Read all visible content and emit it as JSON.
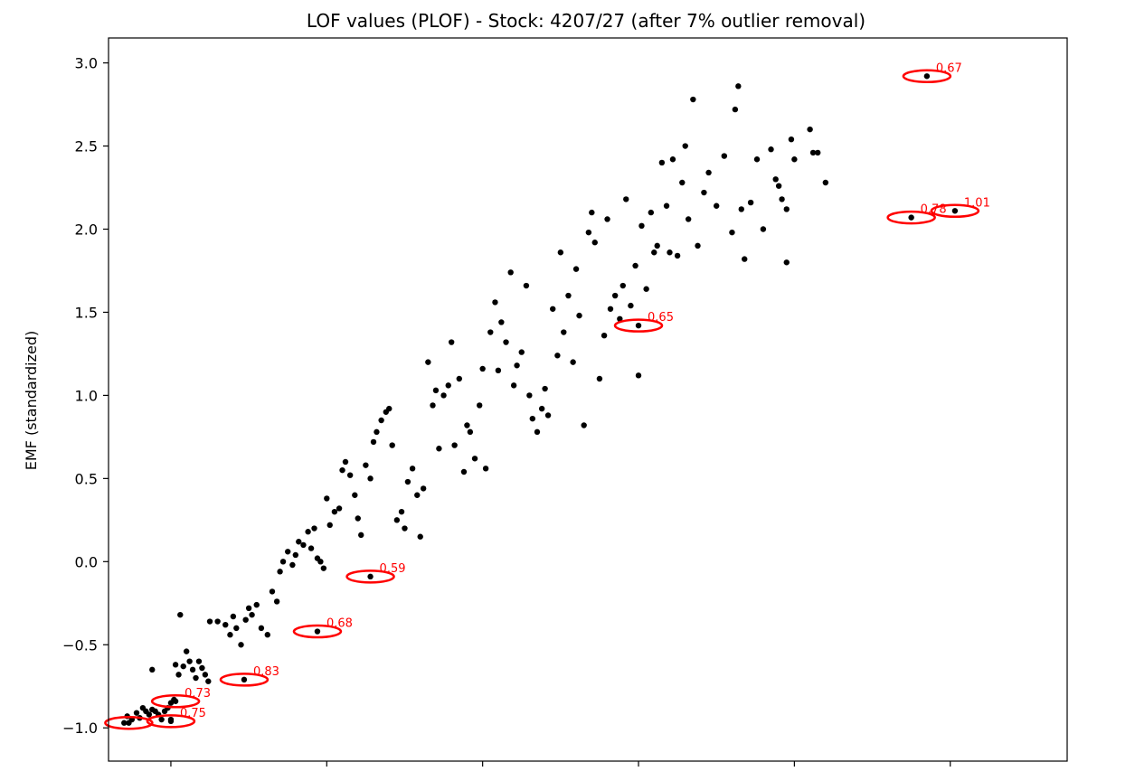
{
  "chart_data": {
    "type": "scatter",
    "title": "LOF values (PLOF) - Stock: 4207/27 (after 7% outlier removal)",
    "xlabel": "",
    "ylabel": "EMF (standardized)",
    "xlim": [
      -1.4,
      4.75
    ],
    "ylim": [
      -1.2,
      3.15
    ],
    "yticks": [
      "3.0",
      "2.5",
      "2.0",
      "1.5",
      "1.0",
      "0.5",
      "0.0",
      "−0.5",
      "−1.0"
    ],
    "ytick_values": [
      3.0,
      2.5,
      2.0,
      1.5,
      1.0,
      0.5,
      0.0,
      -0.5,
      -1.0
    ],
    "xticks_values": [
      -1.0,
      0.0,
      1.0,
      2.0,
      3.0,
      4.0
    ],
    "xtick_labels_visible": false,
    "grid": false,
    "point_color": "#000000",
    "highlight_color": "#ff0000",
    "points": [
      [
        -1.3,
        -0.97
      ],
      [
        -1.28,
        -0.93
      ],
      [
        -1.25,
        -0.95
      ],
      [
        -1.22,
        -0.91
      ],
      [
        -1.2,
        -0.94
      ],
      [
        -1.18,
        -0.88
      ],
      [
        -1.16,
        -0.9
      ],
      [
        -1.14,
        -0.92
      ],
      [
        -1.12,
        -0.89
      ],
      [
        -1.1,
        -0.9
      ],
      [
        -1.08,
        -0.92
      ],
      [
        -1.06,
        -0.95
      ],
      [
        -1.04,
        -0.9
      ],
      [
        -1.02,
        -0.88
      ],
      [
        -1.0,
        -0.85
      ],
      [
        -0.98,
        -0.83
      ],
      [
        -1.0,
        -0.95
      ],
      [
        -0.97,
        -0.62
      ],
      [
        -0.95,
        -0.68
      ],
      [
        -0.92,
        -0.63
      ],
      [
        -0.9,
        -0.54
      ],
      [
        -0.88,
        -0.6
      ],
      [
        -0.86,
        -0.65
      ],
      [
        -0.84,
        -0.7
      ],
      [
        -0.82,
        -0.6
      ],
      [
        -0.8,
        -0.64
      ],
      [
        -0.78,
        -0.68
      ],
      [
        -0.76,
        -0.72
      ],
      [
        -1.12,
        -0.65
      ],
      [
        -0.94,
        -0.32
      ],
      [
        -0.75,
        -0.36
      ],
      [
        -0.7,
        -0.36
      ],
      [
        -0.65,
        -0.38
      ],
      [
        -0.62,
        -0.44
      ],
      [
        -0.6,
        -0.33
      ],
      [
        -0.58,
        -0.4
      ],
      [
        -0.55,
        -0.5
      ],
      [
        -0.52,
        -0.35
      ],
      [
        -0.5,
        -0.28
      ],
      [
        -0.48,
        -0.32
      ],
      [
        -0.45,
        -0.26
      ],
      [
        -0.42,
        -0.4
      ],
      [
        -0.38,
        -0.44
      ],
      [
        -0.35,
        -0.18
      ],
      [
        -0.32,
        -0.24
      ],
      [
        -0.3,
        -0.06
      ],
      [
        -0.28,
        0.0
      ],
      [
        -0.25,
        0.06
      ],
      [
        -0.22,
        -0.02
      ],
      [
        -0.2,
        0.04
      ],
      [
        -0.18,
        0.12
      ],
      [
        -0.15,
        0.1
      ],
      [
        -0.12,
        0.18
      ],
      [
        -0.1,
        0.08
      ],
      [
        -0.08,
        0.2
      ],
      [
        -0.06,
        0.02
      ],
      [
        -0.04,
        0.0
      ],
      [
        -0.02,
        -0.04
      ],
      [
        0.0,
        0.38
      ],
      [
        0.02,
        0.22
      ],
      [
        0.05,
        0.3
      ],
      [
        0.08,
        0.32
      ],
      [
        0.1,
        0.55
      ],
      [
        0.12,
        0.6
      ],
      [
        0.15,
        0.52
      ],
      [
        0.18,
        0.4
      ],
      [
        0.2,
        0.26
      ],
      [
        0.22,
        0.16
      ],
      [
        0.25,
        0.58
      ],
      [
        0.28,
        0.5
      ],
      [
        0.3,
        0.72
      ],
      [
        0.32,
        0.78
      ],
      [
        0.35,
        0.85
      ],
      [
        0.38,
        0.9
      ],
      [
        0.4,
        0.92
      ],
      [
        0.42,
        0.7
      ],
      [
        0.45,
        0.25
      ],
      [
        0.48,
        0.3
      ],
      [
        0.5,
        0.2
      ],
      [
        0.52,
        0.48
      ],
      [
        0.55,
        0.56
      ],
      [
        0.58,
        0.4
      ],
      [
        0.6,
        0.15
      ],
      [
        0.62,
        0.44
      ],
      [
        0.65,
        1.2
      ],
      [
        0.68,
        0.94
      ],
      [
        0.7,
        1.03
      ],
      [
        0.72,
        0.68
      ],
      [
        0.75,
        1.0
      ],
      [
        0.78,
        1.06
      ],
      [
        0.8,
        1.32
      ],
      [
        0.82,
        0.7
      ],
      [
        0.85,
        1.1
      ],
      [
        0.88,
        0.54
      ],
      [
        0.9,
        0.82
      ],
      [
        0.92,
        0.78
      ],
      [
        0.95,
        0.62
      ],
      [
        0.98,
        0.94
      ],
      [
        1.0,
        1.16
      ],
      [
        1.02,
        0.56
      ],
      [
        1.05,
        1.38
      ],
      [
        1.08,
        1.56
      ],
      [
        1.1,
        1.15
      ],
      [
        1.12,
        1.44
      ],
      [
        1.15,
        1.32
      ],
      [
        1.18,
        1.74
      ],
      [
        1.2,
        1.06
      ],
      [
        1.22,
        1.18
      ],
      [
        1.25,
        1.26
      ],
      [
        1.28,
        1.66
      ],
      [
        1.3,
        1.0
      ],
      [
        1.32,
        0.86
      ],
      [
        1.35,
        0.78
      ],
      [
        1.38,
        0.92
      ],
      [
        1.4,
        1.04
      ],
      [
        1.42,
        0.88
      ],
      [
        1.45,
        1.52
      ],
      [
        1.48,
        1.24
      ],
      [
        1.5,
        1.86
      ],
      [
        1.52,
        1.38
      ],
      [
        1.55,
        1.6
      ],
      [
        1.58,
        1.2
      ],
      [
        1.6,
        1.76
      ],
      [
        1.62,
        1.48
      ],
      [
        1.65,
        0.82
      ],
      [
        1.68,
        1.98
      ],
      [
        1.7,
        2.1
      ],
      [
        1.72,
        1.92
      ],
      [
        1.75,
        1.1
      ],
      [
        1.78,
        1.36
      ],
      [
        1.8,
        2.06
      ],
      [
        1.82,
        1.52
      ],
      [
        1.85,
        1.6
      ],
      [
        1.88,
        1.46
      ],
      [
        1.9,
        1.66
      ],
      [
        1.92,
        2.18
      ],
      [
        1.95,
        1.54
      ],
      [
        1.98,
        1.78
      ],
      [
        2.0,
        1.12
      ],
      [
        2.02,
        2.02
      ],
      [
        2.05,
        1.64
      ],
      [
        2.08,
        2.1
      ],
      [
        2.1,
        1.86
      ],
      [
        2.12,
        1.9
      ],
      [
        2.15,
        2.4
      ],
      [
        2.18,
        2.14
      ],
      [
        2.2,
        1.86
      ],
      [
        2.22,
        2.42
      ],
      [
        2.25,
        1.84
      ],
      [
        2.28,
        2.28
      ],
      [
        2.3,
        2.5
      ],
      [
        2.32,
        2.06
      ],
      [
        2.35,
        2.78
      ],
      [
        2.38,
        1.9
      ],
      [
        2.42,
        2.22
      ],
      [
        2.45,
        2.34
      ],
      [
        2.5,
        2.14
      ],
      [
        2.55,
        2.44
      ],
      [
        2.6,
        1.98
      ],
      [
        2.62,
        2.72
      ],
      [
        2.64,
        2.86
      ],
      [
        2.66,
        2.12
      ],
      [
        2.68,
        1.82
      ],
      [
        2.72,
        2.16
      ],
      [
        2.76,
        2.42
      ],
      [
        2.8,
        2.0
      ],
      [
        2.85,
        2.48
      ],
      [
        2.88,
        2.3
      ],
      [
        2.9,
        2.26
      ],
      [
        2.92,
        2.18
      ],
      [
        2.95,
        1.8
      ],
      [
        2.98,
        2.54
      ],
      [
        3.1,
        2.6
      ],
      [
        3.12,
        2.46
      ],
      [
        3.15,
        2.46
      ],
      [
        3.2,
        2.28
      ],
      [
        3.0,
        2.42
      ],
      [
        2.95,
        2.12
      ]
    ],
    "annotated_points": [
      {
        "x": -1.27,
        "y": -0.97,
        "lof": ""
      },
      {
        "x": -1.0,
        "y": -0.96,
        "lof": "0.75"
      },
      {
        "x": -0.97,
        "y": -0.84,
        "lof": "0.73"
      },
      {
        "x": -0.53,
        "y": -0.71,
        "lof": "0.83"
      },
      {
        "x": -0.06,
        "y": -0.42,
        "lof": "0.68"
      },
      {
        "x": 0.28,
        "y": -0.09,
        "lof": "0.59"
      },
      {
        "x": 2.0,
        "y": 1.42,
        "lof": "0.65"
      },
      {
        "x": 3.75,
        "y": 2.07,
        "lof": "0.78"
      },
      {
        "x": 3.85,
        "y": 2.92,
        "lof": "0.67"
      },
      {
        "x": 4.03,
        "y": 2.11,
        "lof": "1.01"
      }
    ]
  }
}
